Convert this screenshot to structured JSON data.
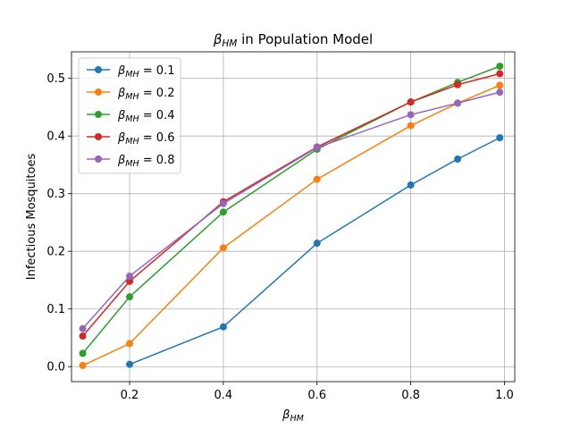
{
  "chart_data": {
    "type": "line",
    "title": "β_HM in Population Model",
    "title_parts": {
      "symbol": "β",
      "subscript": "HM",
      "suffix": " in Population Model"
    },
    "xlabel": "β_HM",
    "xlabel_parts": {
      "symbol": "β",
      "subscript": "HM"
    },
    "ylabel": "Infectious Mosquitoes",
    "xlim": [
      0.076,
      1.022
    ],
    "ylim": [
      -0.026,
      0.546
    ],
    "xticks": [
      0.2,
      0.4,
      0.6,
      0.8,
      1.0
    ],
    "xtick_labels": [
      "0.2",
      "0.4",
      "0.6",
      "0.8",
      "1.0"
    ],
    "yticks": [
      0.0,
      0.1,
      0.2,
      0.3,
      0.4,
      0.5
    ],
    "ytick_labels": [
      "0.0",
      "0.1",
      "0.2",
      "0.3",
      "0.4",
      "0.5"
    ],
    "grid": true,
    "legend_position": "upper-left",
    "x": [
      0.1,
      0.2,
      0.4,
      0.6,
      0.8,
      0.9,
      0.99
    ],
    "series": [
      {
        "name": "β_MH = 0.1",
        "legend_symbol": "β",
        "legend_subscript": "MH",
        "legend_value": " = 0.1",
        "color": "#1f77b4",
        "values": [
          null,
          0.004,
          0.069,
          0.214,
          0.315,
          0.36,
          0.397
        ]
      },
      {
        "name": "β_MH = 0.2",
        "legend_symbol": "β",
        "legend_subscript": "MH",
        "legend_value": " = 0.2",
        "color": "#ff7f0e",
        "values": [
          0.002,
          0.04,
          0.206,
          0.325,
          0.418,
          0.457,
          0.488
        ]
      },
      {
        "name": "β_MH = 0.4",
        "legend_symbol": "β",
        "legend_subscript": "MH",
        "legend_value": " = 0.4",
        "color": "#2ca02c",
        "values": [
          0.023,
          0.121,
          0.268,
          0.377,
          0.459,
          0.493,
          0.521
        ]
      },
      {
        "name": "β_MH = 0.6",
        "legend_symbol": "β",
        "legend_subscript": "MH",
        "legend_value": " = 0.6",
        "color": "#d62728",
        "values": [
          0.053,
          0.148,
          0.286,
          0.381,
          0.459,
          0.489,
          0.508
        ]
      },
      {
        "name": "β_MH = 0.8",
        "legend_symbol": "β",
        "legend_subscript": "MH",
        "legend_value": " = 0.8",
        "color": "#9467bd",
        "values": [
          0.066,
          0.157,
          0.283,
          0.38,
          0.437,
          0.457,
          0.476
        ]
      }
    ]
  }
}
